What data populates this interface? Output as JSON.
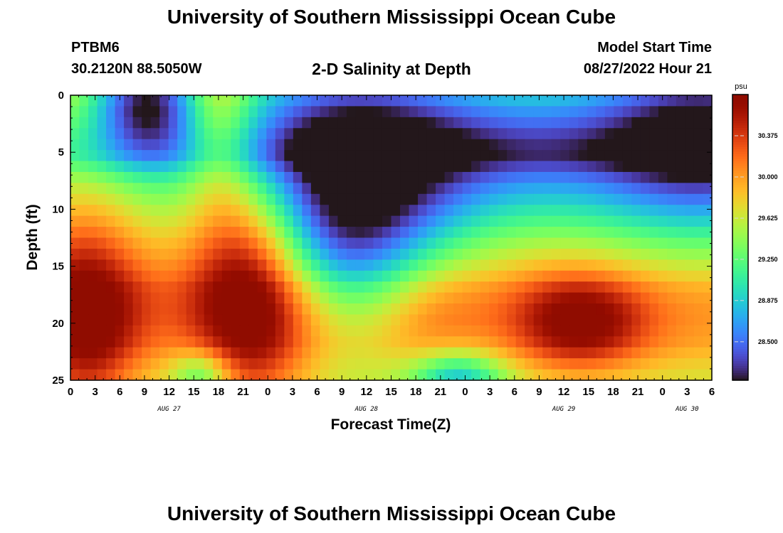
{
  "header": {
    "title": "University of Southern Mississippi Ocean Cube",
    "station": "PTBM6",
    "coordinates": "30.2120N  88.5050W",
    "plot_title": "2-D Salinity at Depth",
    "model_start_label": "Model Start Time",
    "model_start_value": "08/27/2022 Hour 21"
  },
  "footer": {
    "title": "University of Southern Mississippi Ocean Cube"
  },
  "chart_data": {
    "type": "heatmap",
    "title": "2-D Salinity at Depth",
    "xlabel": "Forecast Time(Z)",
    "ylabel": "Depth (ft)",
    "x_hours": [
      0,
      78
    ],
    "x_tick_labels": [
      "0",
      "3",
      "6",
      "9",
      "12",
      "15",
      "18",
      "21",
      "0",
      "3",
      "6",
      "9",
      "12",
      "15",
      "18",
      "21",
      "0",
      "3",
      "6",
      "9",
      "12",
      "15",
      "18",
      "21",
      "0",
      "3",
      "6"
    ],
    "date_labels": [
      {
        "hour": 12,
        "text": "AUG 27"
      },
      {
        "hour": 36,
        "text": "AUG 28"
      },
      {
        "hour": 60,
        "text": "AUG 29"
      },
      {
        "hour": 75,
        "text": "AUG 30"
      }
    ],
    "ylim": [
      0,
      25
    ],
    "y_ticks": [
      0,
      5,
      10,
      15,
      20,
      25
    ],
    "y_inverted": true,
    "colorbar": {
      "unit": "psu",
      "range": [
        28.15,
        30.75
      ],
      "ticks": [
        28.5,
        28.875,
        29.25,
        29.625,
        30.0,
        30.375
      ],
      "tick_labels": [
        "28.500",
        "28.875",
        "29.250",
        "29.625",
        "30.000",
        "30.375"
      ],
      "colormap": "turbo"
    },
    "grid": {
      "n_x": 72,
      "n_y": 26,
      "base": [
        29.62,
        29.52,
        29.42,
        29.3,
        29.2,
        29.15,
        29.25,
        29.38,
        29.48,
        29.55,
        29.62,
        29.68,
        29.75,
        29.82,
        29.88,
        29.95,
        30.02,
        30.1,
        30.12,
        30.12,
        30.1,
        30.05,
        30.0,
        29.9,
        29.8,
        29.72
      ],
      "features": [
        {
          "t": 9,
          "d": 0.3,
          "st": 4.5,
          "sd": 3.5,
          "amp": -1.3
        },
        {
          "t": 2,
          "d": 20,
          "st": 4.5,
          "sd": 7,
          "amp": 0.85
        },
        {
          "t": 18,
          "d": 2,
          "st": 3,
          "sd": 6,
          "amp": 0.55
        },
        {
          "t": 22,
          "d": 17,
          "st": 5,
          "sd": 8,
          "amp": 1.0
        },
        {
          "t": 31,
          "d": 3,
          "st": 12,
          "sd": 7,
          "amp": -1.05
        },
        {
          "t": 33,
          "d": 14,
          "st": 7,
          "sd": 5,
          "amp": -0.75
        },
        {
          "t": 55,
          "d": 4,
          "st": 14,
          "sd": 6,
          "amp": -0.7
        },
        {
          "t": 62,
          "d": 20,
          "st": 5.5,
          "sd": 3,
          "amp": 0.8
        },
        {
          "t": 78,
          "d": 3,
          "st": 10,
          "sd": 7,
          "amp": -1.3
        },
        {
          "t": 44,
          "d": 20,
          "st": 4.5,
          "sd": 4,
          "amp": 0.2
        },
        {
          "t": 47,
          "d": 25,
          "st": 4,
          "sd": 1.8,
          "amp": -0.9
        },
        {
          "t": 16,
          "d": 24.5,
          "st": 2.5,
          "sd": 1.5,
          "amp": -0.6
        },
        {
          "t": 38,
          "d": 10,
          "st": 8,
          "sd": 6,
          "amp": -0.45
        }
      ]
    }
  }
}
